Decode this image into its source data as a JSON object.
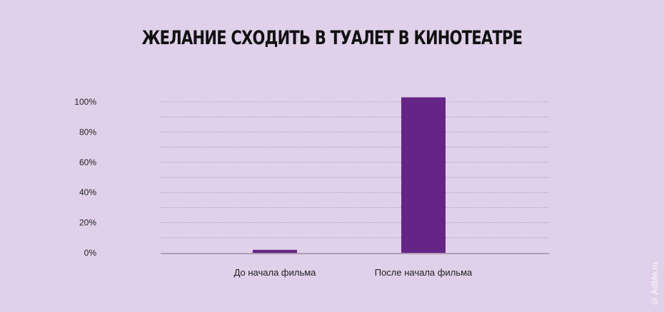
{
  "watermark": "© AdMe.ru",
  "chart_data": {
    "type": "bar",
    "title": "ЖЕЛАНИЕ СХОДИТЬ В ТУАЛЕТ В КИНОТЕАТРЕ",
    "categories": [
      "До начала фильма",
      "После начала фильма"
    ],
    "values": [
      2,
      103
    ],
    "ylim": [
      0,
      100
    ],
    "yticks": [
      0,
      20,
      40,
      60,
      80,
      100
    ],
    "ytick_labels": [
      "0%",
      "20%",
      "40%",
      "60%",
      "80%",
      "100%"
    ],
    "grid": true,
    "bar_color": "#652586",
    "grid_color": "#9a8aa6"
  }
}
